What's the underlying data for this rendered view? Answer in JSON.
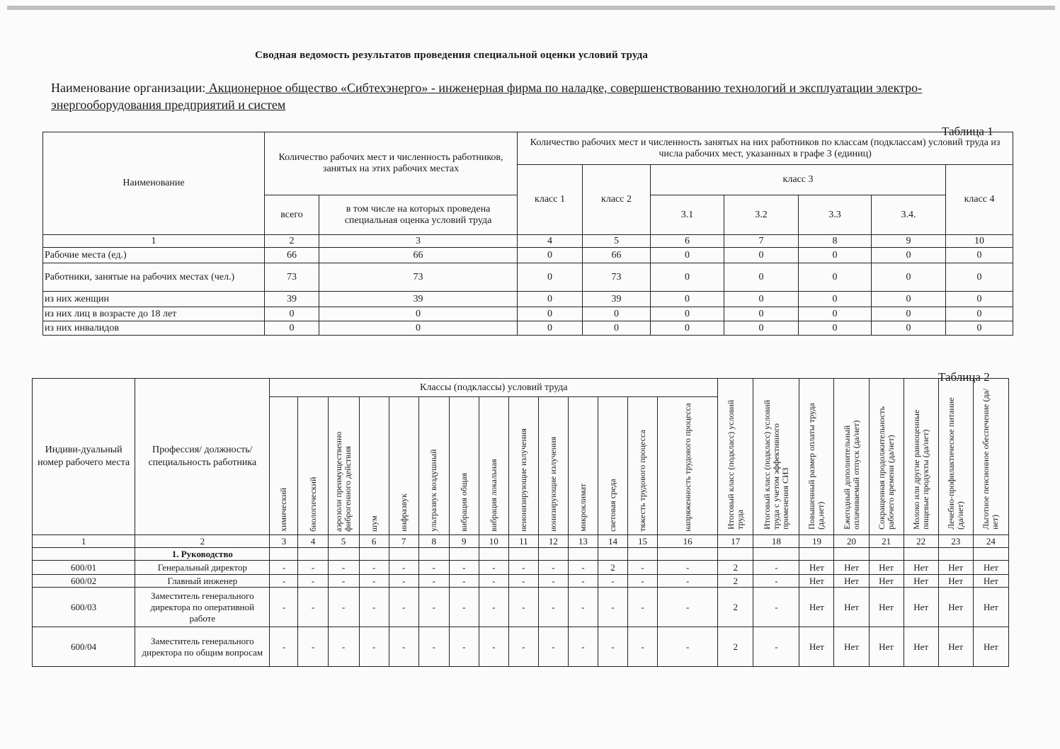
{
  "document": {
    "title": "Сводная ведомость результатов проведения специальной оценки условий труда",
    "org_label": "Наименование организации:",
    "org_name": " Акционерное общество «Сибтехэнерго» - инженерная фирма по наладке, совершенствованию технологий и эксплуатации электро-энергооборудования предприятий и систем "
  },
  "table1": {
    "label": "Таблица 1",
    "headers": {
      "name": "Наименование",
      "workplaces_group": "Количество рабочих мест и численность работников, занятых на этих рабочих местах",
      "total": "всего",
      "assessed": "в том числе на которых проведена специальная оценка условий труда",
      "classes_group": "Количество рабочих мест и численность занятых на них работников по классам (подклассам) условий труда из числа рабочих мест, указанных в графе 3 (единиц)",
      "class1": "класс 1",
      "class2": "класс 2",
      "class3": "класс 3",
      "c31": "3.1",
      "c32": "3.2",
      "c33": "3.3",
      "c34": "3.4.",
      "class4": "класс 4"
    },
    "col_numbers": [
      "1",
      "2",
      "3",
      "4",
      "5",
      "6",
      "7",
      "8",
      "9",
      "10"
    ],
    "rows": [
      [
        "Рабочие места (ед.)",
        "66",
        "66",
        "0",
        "66",
        "0",
        "0",
        "0",
        "0",
        "0"
      ],
      [
        "Работники, занятые на рабочих местах (чел.)",
        "73",
        "73",
        "0",
        "73",
        "0",
        "0",
        "0",
        "0",
        "0"
      ],
      [
        "из них женщин",
        "39",
        "39",
        "0",
        "39",
        "0",
        "0",
        "0",
        "0",
        "0"
      ],
      [
        "из них лиц в возрасте до 18 лет",
        "0",
        "0",
        "0",
        "0",
        "0",
        "0",
        "0",
        "0",
        "0"
      ],
      [
        "из них инвалидов",
        "0",
        "0",
        "0",
        "0",
        "0",
        "0",
        "0",
        "0",
        "0"
      ]
    ]
  },
  "table2": {
    "label": "Таблица 2",
    "headers": {
      "id": "Индиви-дуальный номер рабочего места",
      "profession": "Профессия/ должность/ специальность работника",
      "classes_group": "Классы (подклассы) условий труда",
      "factors": [
        "химический",
        "биологический",
        "аэрозоли преимущественно фиброгенного действия",
        "шум",
        "инфразвук",
        "ультразвук воздушный",
        "вибрация общая",
        "вибрация локальная",
        "неионизирующие излучения",
        "ионизирующие излучения",
        "микроклимат",
        "световая среда",
        "тяжесть трудового процесса",
        "напряженность трудового процесса"
      ],
      "extra": [
        "Итоговый класс (подкласс) условий труда",
        "Итоговый класс (подкласс) условий труда с учетом эффективного применения СИЗ",
        "Повышенный размер оплаты труда (да,нет)",
        "Ежегодный дополнительный оплачиваемый отпуск (да/нет)",
        "Сокращенная продолжительность рабочего времени (да/нет)",
        "Молоко или другие равноценные пищевые продукты (да/нет)",
        "Лечебно-профилактическое питание (да/нет)",
        "Льготное пенсионное обеспечение (да/нет)"
      ]
    },
    "col_numbers": [
      "1",
      "2",
      "3",
      "4",
      "5",
      "6",
      "7",
      "8",
      "9",
      "10",
      "11",
      "12",
      "13",
      "14",
      "15",
      "16",
      "17",
      "18",
      "19",
      "20",
      "21",
      "22",
      "23",
      "24"
    ],
    "section": "1. Руководство",
    "rows": [
      [
        "600/01",
        "Генеральный директор",
        "-",
        "-",
        "-",
        "-",
        "-",
        "-",
        "-",
        "-",
        "-",
        "-",
        "-",
        "2",
        "-",
        "-",
        "2",
        "-",
        "Нет",
        "Нет",
        "Нет",
        "Нет",
        "Нет",
        "Нет"
      ],
      [
        "600/02",
        "Главный инженер",
        "-",
        "-",
        "-",
        "-",
        "-",
        "-",
        "-",
        "-",
        "-",
        "-",
        "-",
        "-",
        "-",
        "-",
        "2",
        "-",
        "Нет",
        "Нет",
        "Нет",
        "Нет",
        "Нет",
        "Нет"
      ],
      [
        "600/03",
        "Заместитель генерального директора по оперативной работе",
        "-",
        "-",
        "-",
        "-",
        "-",
        "-",
        "-",
        "-",
        "-",
        "-",
        "-",
        "-",
        "-",
        "-",
        "2",
        "-",
        "Нет",
        "Нет",
        "Нет",
        "Нет",
        "Нет",
        "Нет"
      ],
      [
        "600/04",
        "Заместитель генерального директора по общим вопросам",
        "-",
        "-",
        "-",
        "-",
        "-",
        "-",
        "-",
        "-",
        "-",
        "-",
        "-",
        "-",
        "-",
        "-",
        "2",
        "-",
        "Нет",
        "Нет",
        "Нет",
        "Нет",
        "Нет",
        "Нет"
      ]
    ]
  }
}
